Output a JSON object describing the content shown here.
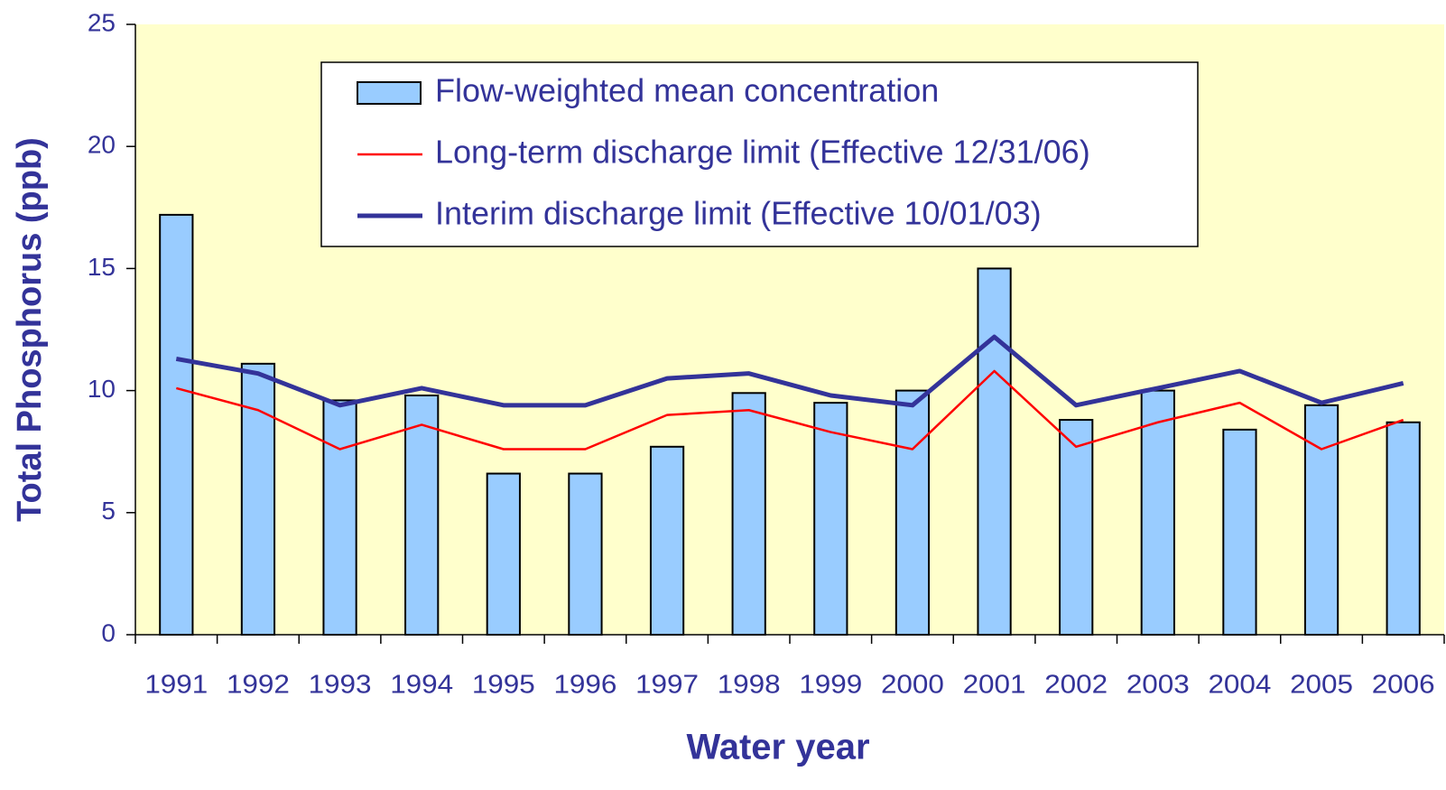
{
  "chart_data": {
    "type": "bar",
    "x_label": "Water year",
    "y_label": "Total Phosphorus (ppb)",
    "categories": [
      "1991",
      "1992",
      "1993",
      "1994",
      "1995",
      "1996",
      "1997",
      "1998",
      "1999",
      "2000",
      "2001",
      "2002",
      "2003",
      "2004",
      "2005",
      "2006"
    ],
    "series": [
      {
        "name": "Flow-weighted mean concentration",
        "type": "bar",
        "color": "#99ccff",
        "values": [
          17.2,
          11.1,
          9.6,
          9.8,
          6.6,
          6.6,
          7.7,
          9.9,
          9.5,
          10.0,
          15.0,
          8.8,
          10.0,
          8.4,
          9.4,
          8.7
        ]
      },
      {
        "name": "Long-term discharge limit (Effective 12/31/06)",
        "type": "line",
        "color": "#ff0000",
        "linewidth": 2.5,
        "values": [
          10.1,
          9.2,
          7.6,
          8.6,
          7.6,
          7.6,
          9.0,
          9.2,
          8.3,
          7.6,
          10.8,
          7.7,
          8.7,
          9.5,
          7.6,
          8.8
        ]
      },
      {
        "name": "Interim discharge limit (Effective 10/01/03)",
        "type": "line",
        "color": "#333399",
        "linewidth": 5,
        "values": [
          11.3,
          10.7,
          9.4,
          10.1,
          9.4,
          9.4,
          10.5,
          10.7,
          9.8,
          9.4,
          12.2,
          9.4,
          10.1,
          10.8,
          9.5,
          10.3
        ]
      }
    ],
    "ylim": [
      0,
      25
    ],
    "yticks": [
      0,
      5,
      10,
      15,
      20,
      25
    ],
    "grid": false,
    "background": "#ffffcc",
    "legend": "top"
  }
}
